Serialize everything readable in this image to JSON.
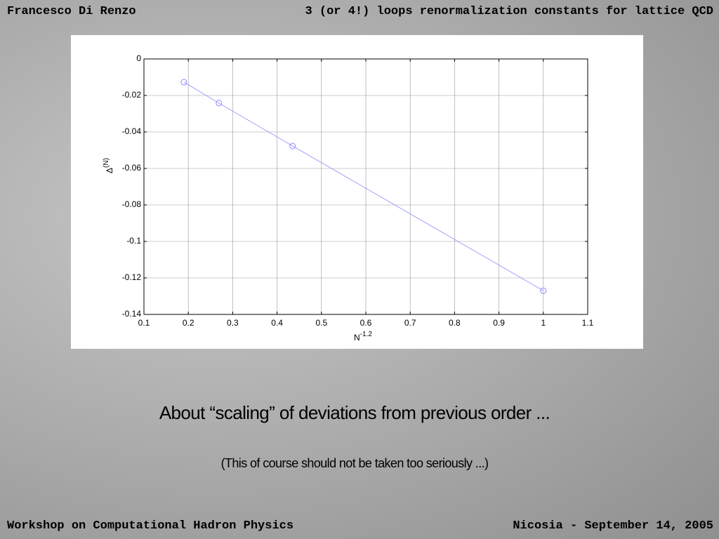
{
  "header": {
    "left": "Francesco Di Renzo",
    "right": "3 (or 4!) loops renormalization constants for lattice QCD"
  },
  "footer": {
    "left": "Workshop on Computational Hadron Physics",
    "right": "Nicosia - September 14, 2005"
  },
  "caption": {
    "main": "About “scaling” of deviations from previous order ...",
    "note": "(This of course should not be taken too seriously ...)"
  },
  "chart_data": {
    "type": "line",
    "xlabel": "N",
    "xlabel_sup": "-1.2",
    "ylabel": "Δ",
    "ylabel_sup": "(N)",
    "x": [
      0.19,
      0.269,
      0.435,
      1
    ],
    "series": [
      {
        "color": "#8c8cff",
        "values": [
          -0.0127,
          -0.0242,
          -0.0477,
          -0.127
        ]
      }
    ],
    "xlim": [
      0.1,
      1.1
    ],
    "xticks": [
      0.1,
      0.2,
      0.3,
      0.4,
      0.5,
      0.6,
      0.7,
      0.8,
      0.9,
      1,
      1.1
    ],
    "ylim": [
      -0.14,
      0
    ],
    "yticks": [
      -0.14,
      -0.12,
      -0.1,
      -0.08,
      -0.06,
      -0.04,
      -0.02,
      0
    ],
    "grid": true
  }
}
